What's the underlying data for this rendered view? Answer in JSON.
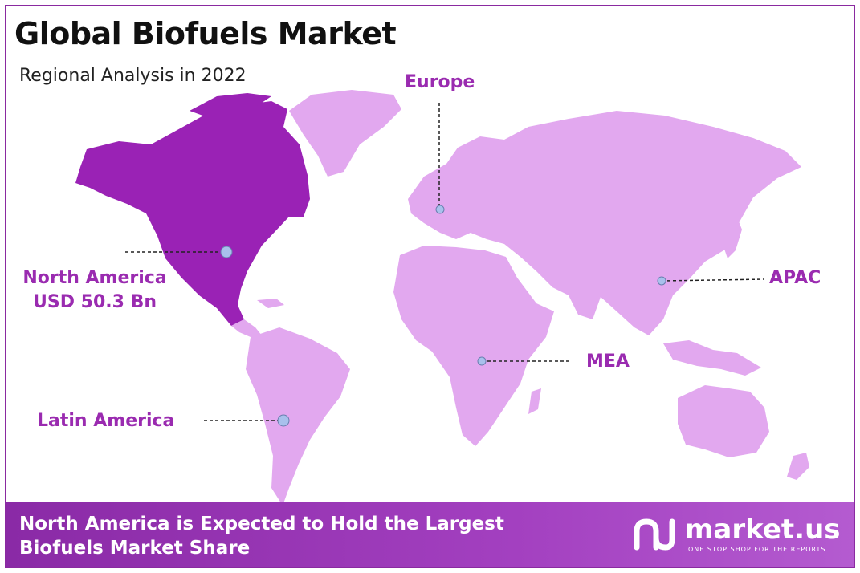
{
  "title": "Global Biofuels Market",
  "subtitle": "Regional Analysis in 2022",
  "regions": {
    "europe": "Europe",
    "north_america": "North America",
    "north_america_value": "USD 50.3 Bn",
    "apac": "APAC",
    "mea": "MEA",
    "latin_america": "Latin America"
  },
  "colors": {
    "highlight": "#9a22b5",
    "land": "#e2a8ef",
    "accent": "#9a2bb0",
    "border": "#8a2aa0",
    "marker": "#a9c0ec"
  },
  "footer": {
    "line1": "North America is Expected to Hold the Largest",
    "line2": "Biofuels Market Share"
  },
  "brand": {
    "name": "market.us",
    "tagline": "ONE STOP SHOP FOR THE REPORTS",
    "icon": "market-us-logo-icon"
  }
}
